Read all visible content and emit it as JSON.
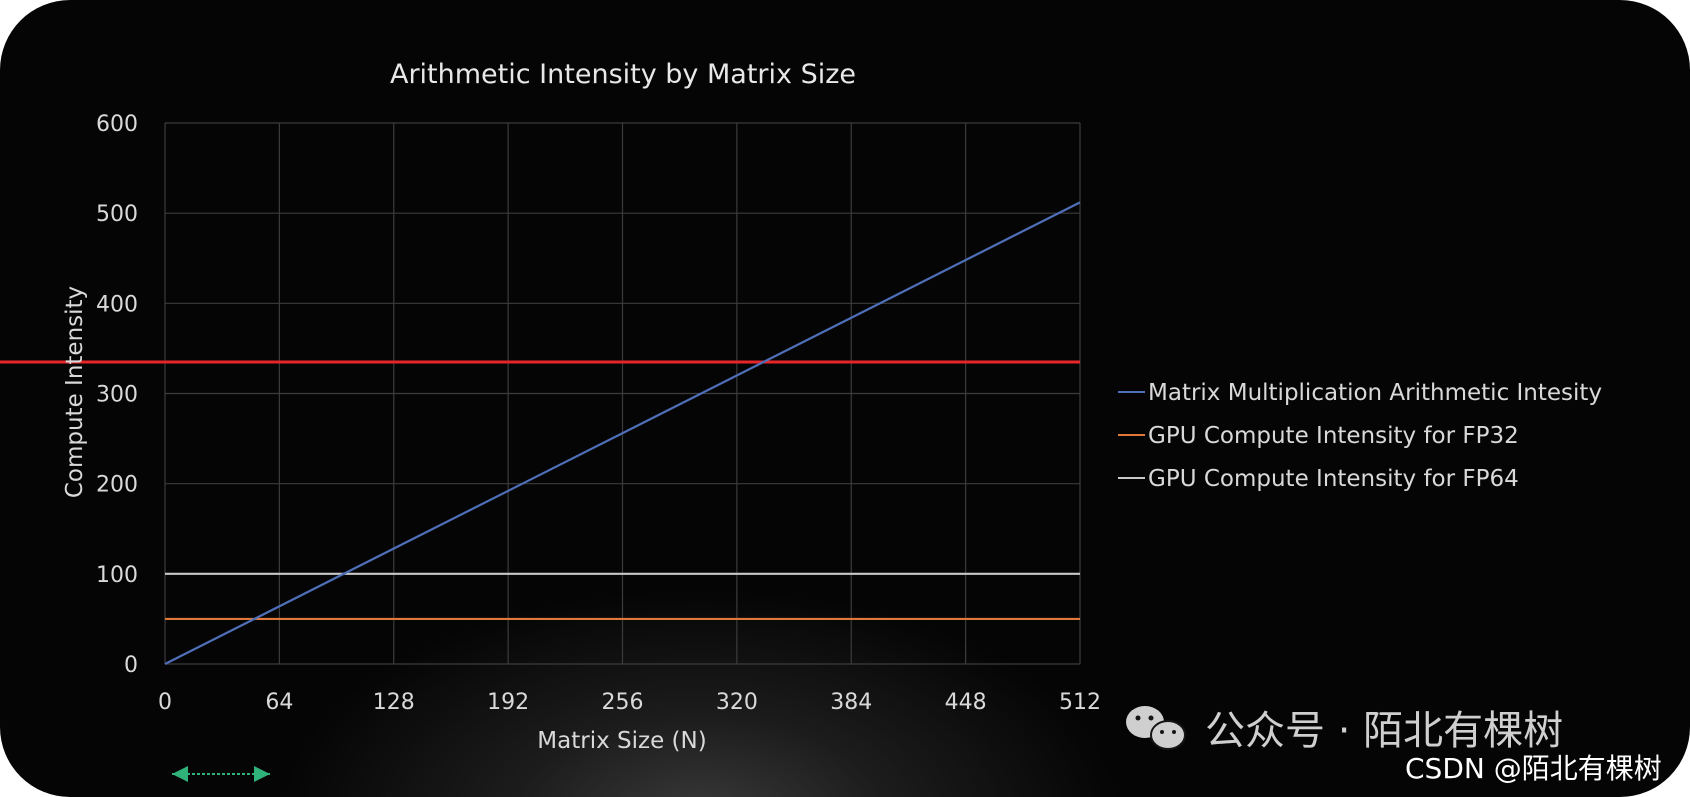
{
  "chart_data": {
    "type": "line",
    "title": "Arithmetic Intensity by Matrix Size",
    "xlabel": "Matrix Size (N)",
    "ylabel": "Compute Intensity",
    "x_ticks": [
      0,
      64,
      128,
      192,
      256,
      320,
      384,
      448,
      512
    ],
    "y_ticks": [
      0,
      100,
      200,
      300,
      400,
      500,
      600
    ],
    "xlim": [
      0,
      512
    ],
    "ylim": [
      0,
      600
    ],
    "grid": true,
    "legend_position": "right",
    "series": [
      {
        "name": "Matrix Multiplication Arithmetic Intesity",
        "x": [
          0,
          512
        ],
        "y": [
          0,
          512
        ],
        "color": "#4f6fb8"
      },
      {
        "name": "GPU Compute Intensity for FP32",
        "x": [
          0,
          512
        ],
        "y": [
          50,
          50
        ],
        "color": "#e0783a"
      },
      {
        "name": "GPU Compute Intensity for FP64",
        "x": [
          0,
          512
        ],
        "y": [
          100,
          100
        ],
        "color": "#c8c8c8"
      }
    ],
    "reference_line": {
      "y": 335,
      "color": "#e8262a"
    }
  },
  "watermark": {
    "brand_text": "公众号 · 陌北有棵树",
    "source_text": "CSDN @陌北有棵树",
    "icon": "wechat-icon"
  },
  "colors": {
    "background": "#030303",
    "grid": "#3c3c3c",
    "axis_text": "#d9d9d9",
    "range_marker": "#2fb37a"
  }
}
